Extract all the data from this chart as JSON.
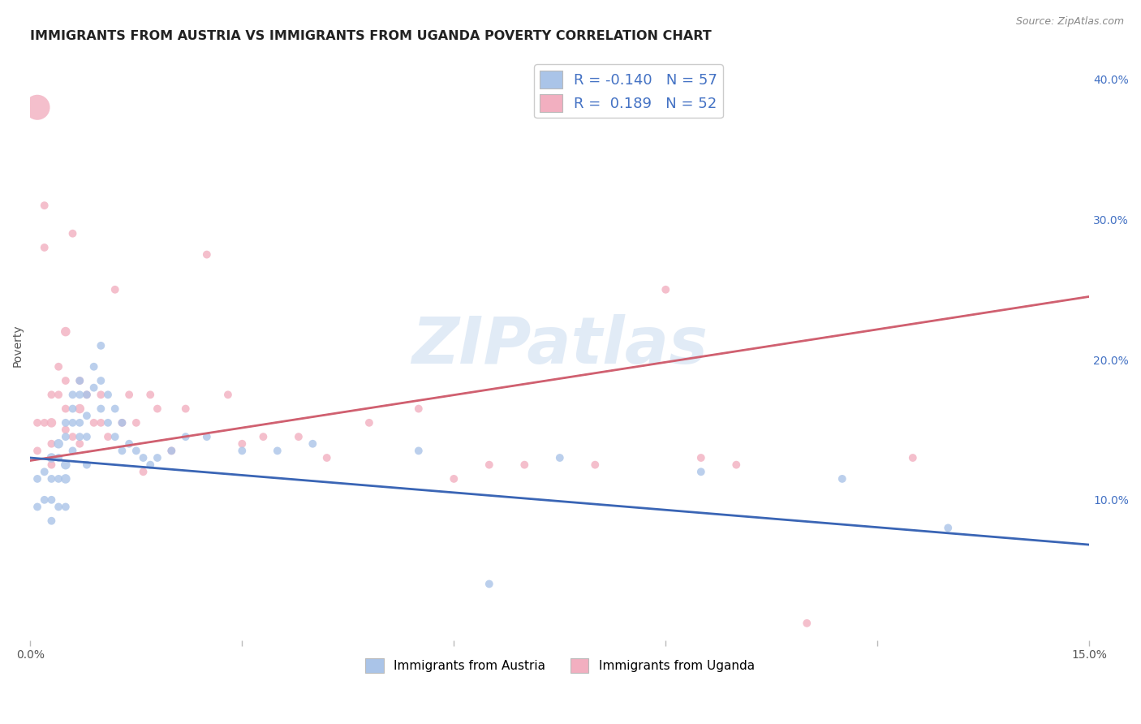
{
  "title": "IMMIGRANTS FROM AUSTRIA VS IMMIGRANTS FROM UGANDA POVERTY CORRELATION CHART",
  "source": "Source: ZipAtlas.com",
  "ylabel": "Poverty",
  "xlim": [
    0.0,
    0.15
  ],
  "ylim": [
    0.0,
    0.42
  ],
  "xticks": [
    0.0,
    0.03,
    0.06,
    0.09,
    0.12,
    0.15
  ],
  "xticklabels": [
    "0.0%",
    "",
    "",
    "",
    "",
    "15.0%"
  ],
  "yticks": [
    0.0,
    0.1,
    0.2,
    0.3,
    0.4
  ],
  "yticklabels": [
    "",
    "10.0%",
    "20.0%",
    "30.0%",
    "40.0%"
  ],
  "austria_R": -0.14,
  "austria_N": 57,
  "uganda_R": 0.189,
  "uganda_N": 52,
  "austria_color": "#aac4e8",
  "uganda_color": "#f2afc0",
  "austria_line_color": "#3a65b5",
  "uganda_line_color": "#d06070",
  "austria_x": [
    0.001,
    0.001,
    0.002,
    0.002,
    0.003,
    0.003,
    0.003,
    0.003,
    0.004,
    0.004,
    0.004,
    0.004,
    0.005,
    0.005,
    0.005,
    0.005,
    0.005,
    0.006,
    0.006,
    0.006,
    0.006,
    0.007,
    0.007,
    0.007,
    0.007,
    0.008,
    0.008,
    0.008,
    0.008,
    0.009,
    0.009,
    0.01,
    0.01,
    0.01,
    0.011,
    0.011,
    0.012,
    0.012,
    0.013,
    0.013,
    0.014,
    0.015,
    0.016,
    0.017,
    0.018,
    0.02,
    0.022,
    0.025,
    0.03,
    0.035,
    0.04,
    0.055,
    0.065,
    0.075,
    0.095,
    0.115,
    0.13
  ],
  "austria_y": [
    0.115,
    0.095,
    0.12,
    0.1,
    0.13,
    0.115,
    0.1,
    0.085,
    0.14,
    0.13,
    0.115,
    0.095,
    0.155,
    0.145,
    0.125,
    0.115,
    0.095,
    0.175,
    0.165,
    0.155,
    0.135,
    0.185,
    0.175,
    0.155,
    0.145,
    0.175,
    0.16,
    0.145,
    0.125,
    0.195,
    0.18,
    0.21,
    0.185,
    0.165,
    0.175,
    0.155,
    0.165,
    0.145,
    0.155,
    0.135,
    0.14,
    0.135,
    0.13,
    0.125,
    0.13,
    0.135,
    0.145,
    0.145,
    0.135,
    0.135,
    0.14,
    0.135,
    0.04,
    0.13,
    0.12,
    0.115,
    0.08
  ],
  "austria_sizes": [
    50,
    50,
    50,
    50,
    70,
    50,
    50,
    50,
    70,
    50,
    50,
    50,
    50,
    50,
    70,
    70,
    50,
    50,
    50,
    50,
    50,
    50,
    50,
    50,
    50,
    50,
    50,
    50,
    50,
    50,
    50,
    50,
    50,
    50,
    50,
    50,
    50,
    50,
    50,
    50,
    50,
    50,
    50,
    50,
    50,
    50,
    50,
    50,
    50,
    50,
    50,
    50,
    50,
    50,
    50,
    50,
    50
  ],
  "uganda_x": [
    0.001,
    0.001,
    0.001,
    0.002,
    0.002,
    0.002,
    0.003,
    0.003,
    0.003,
    0.003,
    0.004,
    0.004,
    0.005,
    0.005,
    0.005,
    0.005,
    0.006,
    0.006,
    0.007,
    0.007,
    0.007,
    0.008,
    0.009,
    0.01,
    0.01,
    0.011,
    0.012,
    0.013,
    0.014,
    0.015,
    0.016,
    0.017,
    0.018,
    0.02,
    0.022,
    0.025,
    0.028,
    0.03,
    0.033,
    0.038,
    0.042,
    0.048,
    0.055,
    0.06,
    0.065,
    0.07,
    0.08,
    0.09,
    0.095,
    0.1,
    0.11,
    0.125
  ],
  "uganda_y": [
    0.38,
    0.155,
    0.135,
    0.31,
    0.28,
    0.155,
    0.175,
    0.155,
    0.14,
    0.125,
    0.195,
    0.175,
    0.22,
    0.185,
    0.165,
    0.15,
    0.29,
    0.145,
    0.185,
    0.165,
    0.14,
    0.175,
    0.155,
    0.175,
    0.155,
    0.145,
    0.25,
    0.155,
    0.175,
    0.155,
    0.12,
    0.175,
    0.165,
    0.135,
    0.165,
    0.275,
    0.175,
    0.14,
    0.145,
    0.145,
    0.13,
    0.155,
    0.165,
    0.115,
    0.125,
    0.125,
    0.125,
    0.25,
    0.13,
    0.125,
    0.012,
    0.13
  ],
  "uganda_sizes": [
    500,
    50,
    50,
    50,
    50,
    50,
    50,
    70,
    50,
    50,
    50,
    50,
    70,
    50,
    50,
    50,
    50,
    50,
    50,
    70,
    50,
    50,
    50,
    50,
    50,
    50,
    50,
    50,
    50,
    50,
    50,
    50,
    50,
    50,
    50,
    50,
    50,
    50,
    50,
    50,
    50,
    50,
    50,
    50,
    50,
    50,
    50,
    50,
    50,
    50,
    50,
    50
  ],
  "watermark_text": "ZIPatlas",
  "watermark_color": "#c5d8ee",
  "background_color": "#ffffff",
  "grid_color": "#d8d8d8",
  "title_fontsize": 11.5,
  "tick_fontsize": 10,
  "right_ytick_color": "#4472c4",
  "ylabel_color": "#555555",
  "source_color": "#888888"
}
